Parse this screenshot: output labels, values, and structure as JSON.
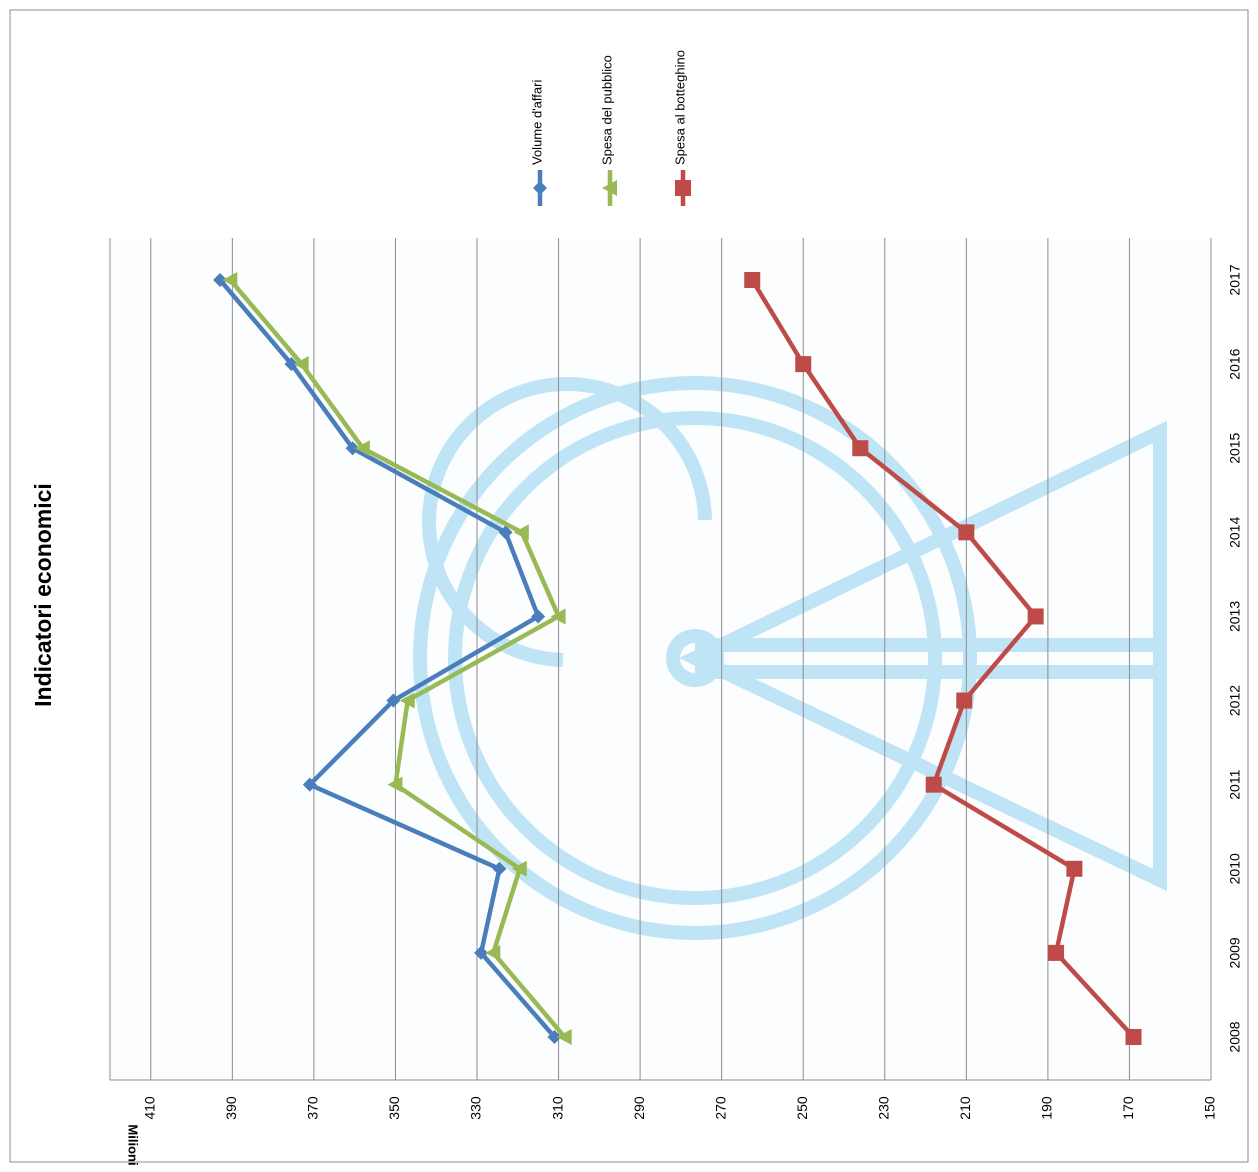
{
  "chart_data": {
    "type": "line",
    "title": "Indicatori economici",
    "y_label": "Milioni",
    "categories": [
      "2008",
      "2009",
      "2010",
      "2011",
      "2012",
      "2013",
      "2014",
      "2015",
      "2016",
      "2017"
    ],
    "series": [
      {
        "name": "Volume d'affari",
        "color": "#4a7ebb",
        "marker": "diamond",
        "values": [
          311,
          329,
          324.5,
          371,
          350.5,
          315,
          323,
          360.5,
          375.5,
          393
        ]
      },
      {
        "name": "Spesa del pubblico",
        "color": "#98b954",
        "marker": "triangle",
        "values": [
          308.5,
          326,
          319.5,
          350,
          347,
          310,
          319,
          358,
          373,
          390.5
        ]
      },
      {
        "name": "Spesa al botteghino",
        "color": "#be4b48",
        "marker": "square",
        "values": [
          169,
          188,
          183.5,
          218,
          210.5,
          193,
          210,
          236,
          250,
          262.5
        ]
      }
    ],
    "ylim": [
      150,
      420
    ],
    "yticks": [
      150,
      170,
      190,
      210,
      230,
      250,
      270,
      290,
      310,
      330,
      350,
      370,
      390,
      410
    ],
    "grid": true,
    "legend": "top"
  }
}
